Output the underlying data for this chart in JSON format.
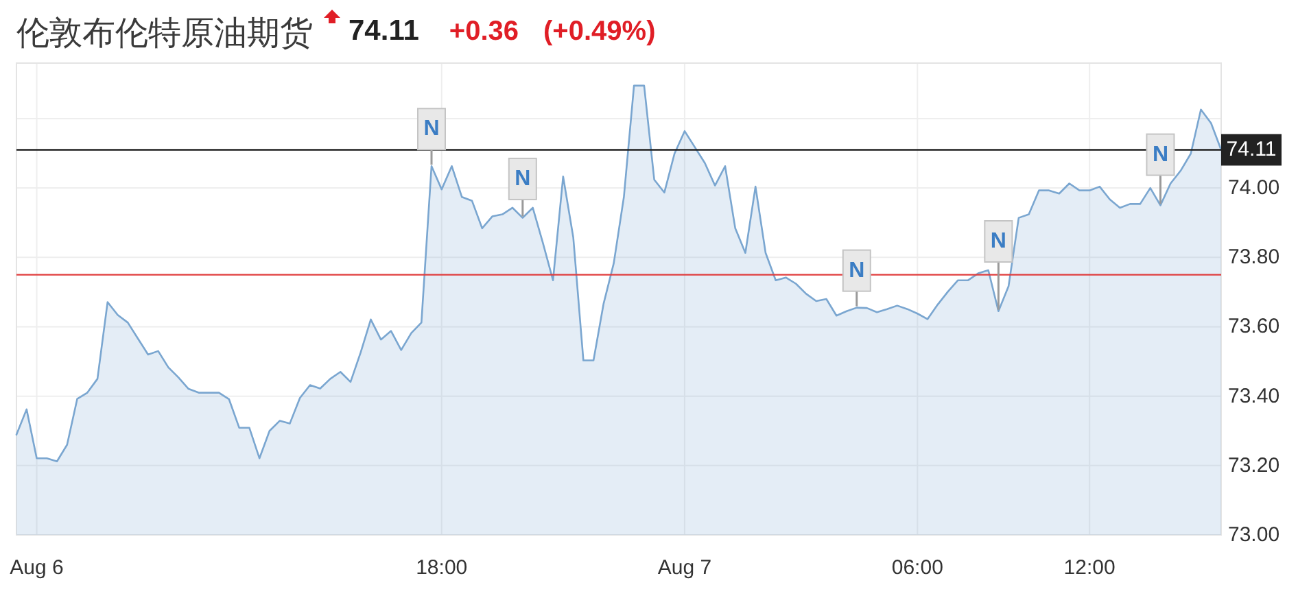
{
  "chart_data": {
    "type": "area",
    "title": "伦敦布伦特原油期货",
    "annotations": [
      "74.11",
      "+0.36",
      "(+0.49%)",
      {
        "text": "N",
        "y": 74.063
      },
      {
        "text": "N",
        "y": 73.914
      },
      {
        "text": "N",
        "y": 73.655
      },
      {
        "text": "N",
        "y": 73.645
      },
      {
        "text": "N",
        "y": 73.95
      }
    ],
    "categories": [
      null,
      null,
      "Aug 6",
      null,
      null,
      null,
      null,
      null,
      null,
      null,
      null,
      null,
      null,
      null,
      null,
      null,
      null,
      null,
      null,
      null,
      null,
      null,
      null,
      null,
      null,
      null,
      null,
      null,
      null,
      null,
      null,
      null,
      null,
      null,
      null,
      null,
      null,
      null,
      null,
      null,
      null,
      null,
      "18:00",
      null,
      null,
      null,
      null,
      null,
      null,
      null,
      null,
      null,
      null,
      null,
      null,
      null,
      null,
      null,
      null,
      null,
      null,
      null,
      null,
      null,
      null,
      null,
      "Aug 7",
      null,
      null,
      null,
      null,
      null,
      null,
      null,
      null,
      null,
      null,
      null,
      null,
      null,
      null,
      null,
      null,
      null,
      null,
      null,
      null,
      null,
      null,
      "06:00",
      null,
      null,
      null,
      null,
      null,
      null,
      null,
      null,
      null,
      null,
      null,
      null,
      null,
      null,
      null,
      null,
      "12:00",
      null,
      null,
      null,
      null,
      null,
      null,
      null,
      null,
      null,
      null,
      null,
      null,
      null
    ],
    "series": [
      {
        "color": "#7aa6d0",
        "values": [
          73.289,
          73.362,
          73.221,
          73.221,
          73.212,
          73.26,
          73.392,
          73.41,
          73.45,
          73.671,
          73.634,
          73.612,
          73.566,
          73.52,
          73.53,
          73.483,
          73.454,
          73.421,
          73.41,
          73.41,
          73.41,
          73.391,
          73.309,
          73.309,
          73.221,
          73.3,
          73.329,
          73.321,
          73.395,
          73.432,
          73.422,
          73.45,
          73.47,
          73.441,
          73.526,
          73.621,
          73.563,
          73.588,
          73.533,
          73.582,
          73.612,
          74.063,
          73.996,
          74.063,
          73.974,
          73.963,
          73.884,
          73.918,
          73.924,
          73.943,
          73.914,
          73.943,
          73.842,
          73.734,
          74.033,
          73.858,
          73.503,
          73.503,
          73.667,
          73.783,
          73.974,
          74.295,
          74.295,
          74.024,
          73.987,
          74.099,
          74.164,
          74.118,
          74.072,
          74.007,
          74.063,
          73.884,
          73.813,
          74.004,
          73.813,
          73.734,
          73.742,
          73.724,
          73.695,
          73.674,
          73.68,
          73.632,
          73.645,
          73.655,
          73.654,
          73.642,
          73.651,
          73.661,
          73.651,
          73.638,
          73.622,
          73.664,
          73.701,
          73.734,
          73.734,
          73.754,
          73.763,
          73.645,
          73.717,
          73.914,
          73.924,
          73.993,
          73.993,
          73.984,
          74.013,
          73.993,
          73.993,
          74.004,
          73.967,
          73.943,
          73.954,
          73.954,
          74.0,
          73.95,
          74.013,
          74.05,
          74.099,
          74.226,
          74.187,
          74.11
        ]
      }
    ],
    "ylim": [
      73.0,
      74.36
    ],
    "yticks": [
      {
        "value": 73.0,
        "label": "73.00"
      },
      {
        "value": 73.2,
        "label": "73.20"
      },
      {
        "value": 73.4,
        "label": "73.40"
      },
      {
        "value": 73.6,
        "label": "73.60"
      },
      {
        "value": 73.8,
        "label": "73.80"
      },
      {
        "value": 74.0,
        "label": "74.00"
      },
      {
        "value": 74.2,
        "label": null
      }
    ],
    "grid": true,
    "ref_lines": [
      {
        "axis": "y",
        "value": 74.11,
        "label": "74.11",
        "color": "#222222"
      },
      {
        "axis": "y",
        "value": 73.75,
        "color": "#e03c3c"
      }
    ]
  }
}
